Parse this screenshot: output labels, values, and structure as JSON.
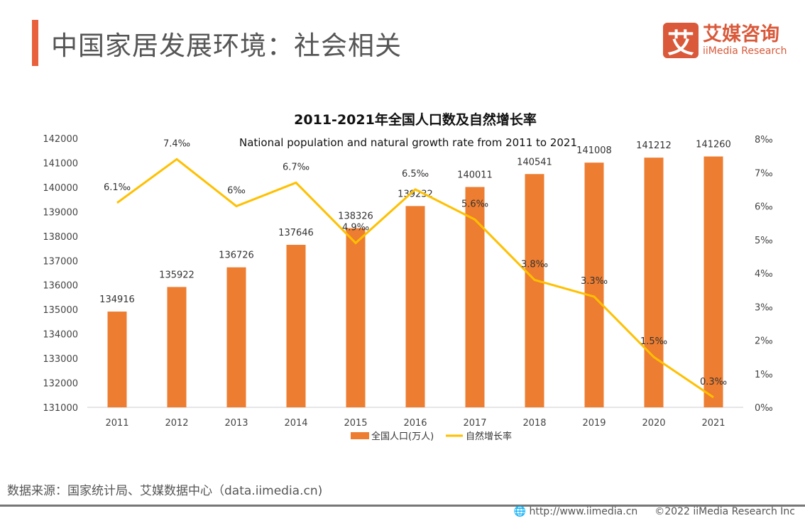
{
  "header": {
    "title": "中国家居发展环境：社会相关",
    "logo_mark": "艾",
    "logo_cn": "艾媒咨询",
    "logo_en": "iiMedia Research"
  },
  "chart_data": {
    "type": "bar+line",
    "title": "2011-2021年全国人口数及自然增长率",
    "subtitle": "National population and natural growth rate from 2011 to 2021",
    "categories": [
      "2011",
      "2012",
      "2013",
      "2014",
      "2015",
      "2016",
      "2017",
      "2018",
      "2019",
      "2020",
      "2021"
    ],
    "series": [
      {
        "name": "全国人口(万人)",
        "type": "bar",
        "axis": "left",
        "color": "#ed7d31",
        "values": [
          134916,
          135922,
          136726,
          137646,
          138326,
          139232,
          140011,
          140541,
          141008,
          141212,
          141260
        ],
        "labels": [
          "134916",
          "135922",
          "136726",
          "137646",
          "138326",
          "139232",
          "140011",
          "140541",
          "141008",
          "141212",
          "141260"
        ]
      },
      {
        "name": "自然增长率",
        "type": "line",
        "axis": "right",
        "color": "#ffc000",
        "values": [
          6.1,
          7.4,
          6,
          6.7,
          4.9,
          6.5,
          5.6,
          3.8,
          3.3,
          1.5,
          0.3
        ],
        "labels": [
          "6.1‰",
          "7.4‰",
          "6‰",
          "6.7‰",
          "4.9‰",
          "6.5‰",
          "5.6‰",
          "3.8‰",
          "3.3‰",
          "1.5‰",
          "0.3‰"
        ]
      }
    ],
    "left_axis": {
      "ylim": [
        131000,
        142000
      ],
      "ticks": [
        "131000",
        "132000",
        "133000",
        "134000",
        "135000",
        "136000",
        "137000",
        "138000",
        "139000",
        "140000",
        "141000",
        "142000"
      ]
    },
    "right_axis": {
      "ylim": [
        0,
        8
      ],
      "ticks": [
        "0‰",
        "1‰",
        "2‰",
        "3‰",
        "4‰",
        "5‰",
        "6‰",
        "7‰",
        "8‰"
      ]
    },
    "legend": "bottom",
    "grid": false
  },
  "footer": {
    "source": "数据来源：国家统计局、艾媒数据中心（data.iimedia.cn)",
    "url": "http://www.iimedia.cn",
    "copyright": "©2022  iiMedia Research  Inc"
  }
}
